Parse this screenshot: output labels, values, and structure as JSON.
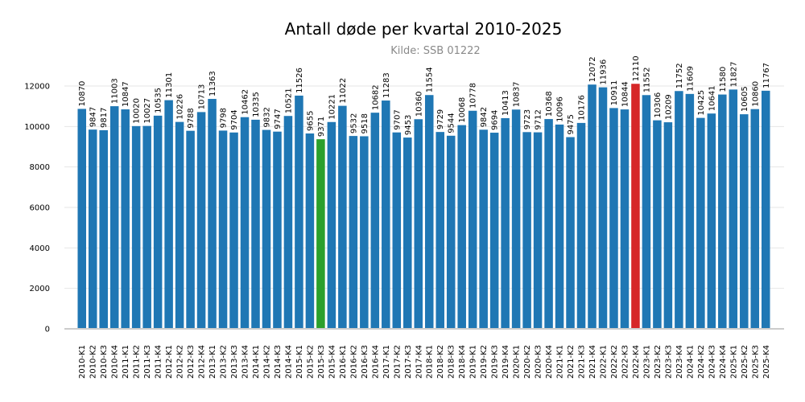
{
  "chart_data": {
    "type": "bar",
    "title": "Antall døde per kvartal 2010-2025",
    "subtitle": "Kilde: SSB 01222",
    "xlabel": "",
    "ylabel": "",
    "ylim": [
      0,
      12600
    ],
    "yticks": [
      0,
      2000,
      4000,
      6000,
      8000,
      10000,
      12000
    ],
    "grid": "horizontal",
    "categories": [
      "2010-K1",
      "2010-K2",
      "2010-K3",
      "2010-K4",
      "2011-K1",
      "2011-K2",
      "2011-K3",
      "2011-K4",
      "2012-K1",
      "2012-K2",
      "2012-K3",
      "2012-K4",
      "2013-K1",
      "2013-K2",
      "2013-K3",
      "2013-K4",
      "2014-K1",
      "2014-K2",
      "2014-K3",
      "2014-K4",
      "2015-K1",
      "2015-K2",
      "2015-K3",
      "2015-K4",
      "2016-K1",
      "2016-K2",
      "2016-K3",
      "2016-K4",
      "2017-K1",
      "2017-K2",
      "2017-K3",
      "2017-K4",
      "2018-K1",
      "2018-K2",
      "2018-K3",
      "2018-K4",
      "2019-K1",
      "2019-K2",
      "2019-K3",
      "2019-K4",
      "2020-K1",
      "2020-K2",
      "2020-K3",
      "2020-K4",
      "2021-K1",
      "2021-K2",
      "2021-K3",
      "2021-K4",
      "2022-K1",
      "2022-K2",
      "2022-K3",
      "2022-K4",
      "2023-K1",
      "2023-K2",
      "2023-K3",
      "2023-K4",
      "2024-K1",
      "2024-K2",
      "2024-K3",
      "2024-K4",
      "2025-K1",
      "2025-K2",
      "2025-K3",
      "2025-K4"
    ],
    "values": [
      10870,
      9847,
      9817,
      11003,
      10847,
      10020,
      10027,
      10535,
      11301,
      10226,
      9788,
      10713,
      11363,
      9798,
      9704,
      10462,
      10335,
      9832,
      9747,
      10521,
      11526,
      9655,
      9371,
      10221,
      11022,
      9532,
      9518,
      10682,
      11283,
      9707,
      9453,
      10360,
      11554,
      9729,
      9544,
      10068,
      10778,
      9842,
      9694,
      10413,
      10837,
      9723,
      9712,
      10368,
      10096,
      9475,
      10176,
      12072,
      11936,
      10911,
      10844,
      12110,
      11552,
      10306,
      10209,
      11752,
      11609,
      10425,
      10641,
      11580,
      11827,
      10605,
      10860,
      11767
    ],
    "colors": {
      "default": "#1f77b4",
      "min": "#2ca02c",
      "max": "#d62728"
    },
    "highlight": {
      "min_category": "2015-K3",
      "max_category": "2022-K4"
    }
  }
}
